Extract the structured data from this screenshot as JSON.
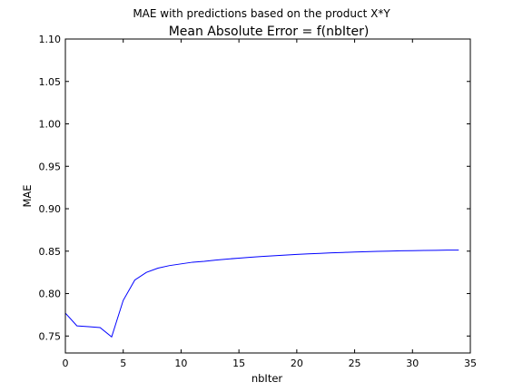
{
  "chart_data": {
    "type": "line",
    "suptitle": "MAE with predictions based on the product X*Y",
    "title": "Mean Absolute Error = f(nbIter)",
    "xlabel": "nbIter",
    "ylabel": "MAE",
    "xlim": [
      0,
      35
    ],
    "ylim": [
      0.73,
      1.1
    ],
    "xticks": [
      "0",
      "5",
      "10",
      "15",
      "20",
      "25",
      "30",
      "35"
    ],
    "yticks": [
      "0.75",
      "0.80",
      "0.85",
      "0.90",
      "0.95",
      "1.00",
      "1.05",
      "1.10"
    ],
    "line_color": "#0000ff",
    "grid": false,
    "series": [
      {
        "x": [
          0,
          1,
          2,
          3,
          4,
          5,
          6,
          7,
          8,
          9,
          10,
          11,
          12,
          13,
          14,
          15,
          16,
          17,
          18,
          19,
          20,
          21,
          22,
          23,
          24,
          25,
          26,
          27,
          28,
          29,
          30,
          31,
          32,
          33,
          34
        ],
        "values": [
          0.777,
          0.762,
          0.761,
          0.76,
          0.749,
          0.792,
          0.816,
          0.825,
          0.83,
          0.833,
          0.835,
          0.837,
          0.838,
          0.8395,
          0.8407,
          0.8418,
          0.8428,
          0.8437,
          0.8446,
          0.8454,
          0.8461,
          0.8468,
          0.8474,
          0.848,
          0.8485,
          0.849,
          0.8494,
          0.8498,
          0.8501,
          0.8504,
          0.8506,
          0.8508,
          0.851,
          0.8512,
          0.8513
        ]
      }
    ]
  }
}
